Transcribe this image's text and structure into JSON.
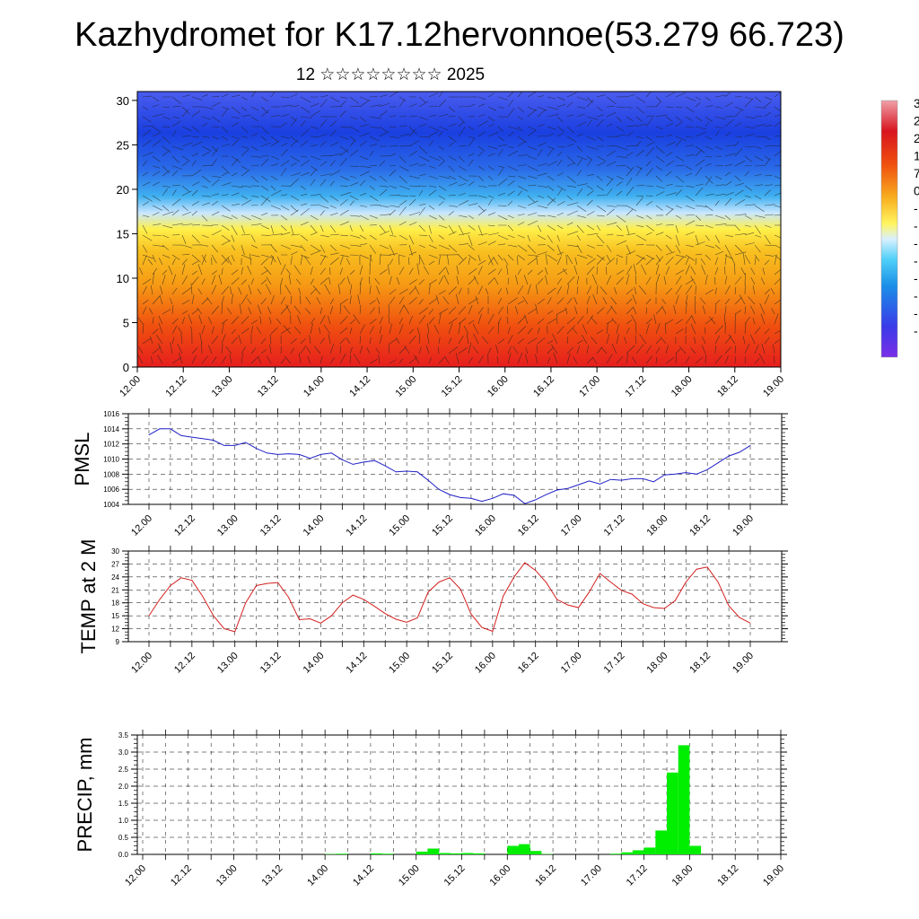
{
  "header": {
    "title": "Kazhydromet for K17.12hervonnoe(53.279 66.723)",
    "subtitle": "12 ☆☆☆☆☆☆☆☆ 2025"
  },
  "chart_data": [
    {
      "type": "heatmap",
      "xlabel": "",
      "ylabel": "",
      "x_ticks": [
        "12.00",
        "12.12",
        "13.00",
        "13.12",
        "14.00",
        "14.12",
        "15.00",
        "15.12",
        "16.00",
        "16.12",
        "17.00",
        "17.12",
        "18.00",
        "18.12",
        "19.00"
      ],
      "y_ticks": [
        0,
        5,
        10,
        15,
        20,
        25,
        30
      ],
      "ylim": [
        0,
        31
      ],
      "colorbar_labels": [
        "3",
        "2",
        "2",
        "1",
        "7",
        "0",
        "-",
        "-",
        "-",
        "-",
        "-",
        "-",
        "-",
        "-"
      ],
      "note_overlay": "wind-vectors",
      "colors": {
        "warm": "#e8241a",
        "neutral": "#fff04a",
        "cold": "#1a3fe0"
      }
    },
    {
      "type": "line",
      "ylabel": "PMSL",
      "ylim": [
        1004,
        1016
      ],
      "y_ticks": [
        1004,
        1006,
        1008,
        1010,
        1012,
        1014,
        1016
      ],
      "x_ticks": [
        "12.00",
        "12.12",
        "13.00",
        "13.12",
        "14.00",
        "14.12",
        "15.00",
        "15.12",
        "16.00",
        "16.12",
        "17.00",
        "17.12",
        "18.00",
        "18.12",
        "19.00"
      ],
      "color": "#2020c8",
      "series": [
        {
          "values": [
            1013.2,
            1014.0,
            1014.0,
            1013.1,
            1012.9,
            1012.7,
            1012.5,
            1011.8,
            1011.8,
            1012.2,
            1011.4,
            1010.8,
            1010.6,
            1010.7,
            1010.6,
            1010.1,
            1010.6,
            1010.8,
            1009.9,
            1009.3,
            1009.6,
            1009.8,
            1009.1,
            1008.3,
            1008.4,
            1008.3,
            1007.2,
            1006.0,
            1005.3,
            1004.9,
            1004.8,
            1004.4,
            1004.8,
            1005.4,
            1005.2,
            1004.1,
            1004.6,
            1005.3,
            1005.9,
            1006.1,
            1006.6,
            1007.1,
            1006.7,
            1007.3,
            1007.2,
            1007.4,
            1007.4,
            1007.0,
            1007.9,
            1008.0,
            1008.2,
            1008.0,
            1008.6,
            1009.5,
            1010.4,
            1010.9,
            1011.8
          ]
        }
      ]
    },
    {
      "type": "line",
      "ylabel": "TEMP at 2 M",
      "ylim": [
        9,
        30
      ],
      "y_ticks": [
        9,
        12,
        15,
        18,
        21,
        24,
        27,
        30
      ],
      "x_ticks": [
        "12.00",
        "12.12",
        "13.00",
        "13.12",
        "14.00",
        "14.12",
        "15.00",
        "15.12",
        "16.00",
        "16.12",
        "17.00",
        "17.12",
        "18.00",
        "18.12",
        "19.00"
      ],
      "color": "#d42020",
      "series": [
        {
          "values": [
            15.0,
            18.8,
            22.0,
            23.8,
            23.2,
            19.5,
            15.0,
            12.0,
            11.3,
            18.0,
            22.0,
            22.5,
            22.7,
            19.3,
            14.1,
            14.3,
            13.3,
            15.0,
            18.0,
            19.8,
            18.8,
            17.2,
            15.5,
            14.2,
            13.5,
            14.5,
            20.5,
            22.8,
            23.8,
            21.2,
            15.4,
            12.3,
            11.4,
            19.6,
            24.0,
            27.3,
            25.5,
            22.7,
            18.8,
            17.5,
            16.9,
            20.5,
            24.8,
            22.8,
            20.9,
            20.0,
            17.8,
            16.9,
            16.7,
            18.5,
            22.8,
            25.8,
            26.3,
            22.8,
            17.3,
            14.6,
            13.3
          ]
        }
      ]
    },
    {
      "type": "bar",
      "ylabel": "PRECIP, mm",
      "ylim": [
        0,
        3.5
      ],
      "y_ticks": [
        0.0,
        0.5,
        1.0,
        1.5,
        2.0,
        2.5,
        3.0,
        3.5
      ],
      "x_ticks": [
        "12.00",
        "12.12",
        "13.00",
        "13.12",
        "14.00",
        "14.12",
        "15.00",
        "15.12",
        "16.00",
        "16.12",
        "17.00",
        "17.12",
        "18.00",
        "18.12",
        "19.00"
      ],
      "color": "#00ee00",
      "series": [
        {
          "values": [
            0,
            0,
            0,
            0,
            0,
            0,
            0,
            0,
            0,
            0,
            0,
            0,
            0,
            0,
            0,
            0,
            0.01,
            0.02,
            0,
            0,
            0.03,
            0.02,
            0,
            0,
            0.08,
            0.17,
            0.04,
            0.03,
            0.04,
            0.03,
            0,
            0,
            0.25,
            0.3,
            0.1,
            0.01,
            0,
            0,
            0,
            0,
            0,
            0.02,
            0.06,
            0.12,
            0.2,
            0.7,
            2.4,
            3.2,
            0.25,
            0,
            0,
            0,
            0,
            0,
            0,
            0
          ]
        }
      ]
    }
  ]
}
